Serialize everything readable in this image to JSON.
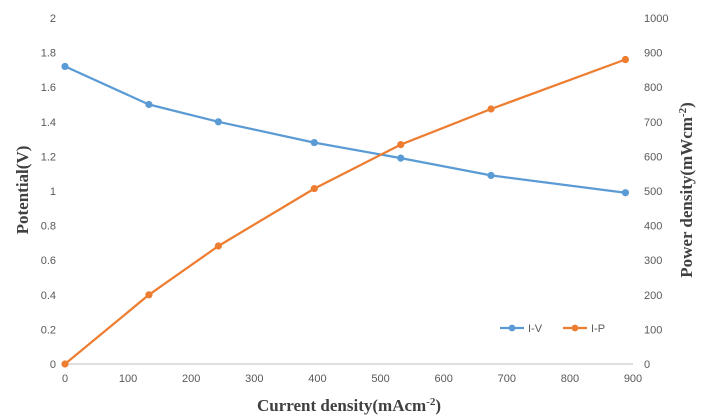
{
  "chart_data": {
    "type": "line",
    "xlabel": "Current density(mAcm",
    "xlabel_sup": "-2",
    "xlabel_end": ")",
    "ylabel_left": "Potential(V)",
    "ylabel_right": "Power density(mWcm",
    "ylabel_right_sup": "-2",
    "ylabel_right_end": ")",
    "xlim": [
      0,
      900
    ],
    "ylim_left": [
      0,
      2
    ],
    "ylim_right": [
      0,
      1000
    ],
    "x_ticks": [
      0,
      100,
      200,
      300,
      400,
      500,
      600,
      700,
      800,
      900
    ],
    "y_left_ticks": [
      "0",
      "0.2",
      "0.4",
      "0.6",
      "0.8",
      "1",
      "1.2",
      "1.4",
      "1.6",
      "1.8",
      "2"
    ],
    "y_right_ticks": [
      "0",
      "100",
      "200",
      "300",
      "400",
      "500",
      "600",
      "700",
      "800",
      "900",
      "1000"
    ],
    "grid": "none",
    "legend": "bottom-right",
    "series": [
      {
        "name": "I-V",
        "axis": "left",
        "color": "#5b9bd5",
        "x": [
          0,
          133,
          243,
          395,
          532,
          675,
          888
        ],
        "y": [
          1.72,
          1.5,
          1.4,
          1.28,
          1.19,
          1.09,
          0.99
        ]
      },
      {
        "name": "I-P",
        "axis": "right",
        "color": "#ed7d31",
        "x": [
          0,
          133,
          243,
          395,
          532,
          675,
          888
        ],
        "y": [
          0,
          200,
          341,
          507,
          634,
          737,
          880
        ]
      }
    ]
  }
}
